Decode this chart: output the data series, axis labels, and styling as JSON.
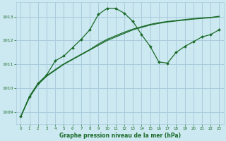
{
  "xlabel": "Graphe pression niveau de la mer (hPa)",
  "background_color": "#cce8f0",
  "grid_color": "#aaccdd",
  "line_color": "#1a6b2a",
  "xlim": [
    -0.5,
    23.5
  ],
  "ylim": [
    1008.5,
    1013.6
  ],
  "yticks": [
    1009,
    1010,
    1011,
    1012,
    1013
  ],
  "xticks": [
    0,
    1,
    2,
    3,
    4,
    5,
    6,
    7,
    8,
    9,
    10,
    11,
    12,
    13,
    14,
    15,
    16,
    17,
    18,
    19,
    20,
    21,
    22,
    23
  ],
  "series1_x": [
    0,
    1,
    2,
    3,
    4,
    5,
    6,
    7,
    8,
    9,
    10,
    11,
    12,
    13,
    14,
    15,
    16,
    17,
    18,
    19,
    20,
    21,
    22,
    23
  ],
  "series1_y": [
    1008.8,
    1009.6,
    1010.15,
    1010.5,
    1010.75,
    1011.0,
    1011.2,
    1011.4,
    1011.6,
    1011.8,
    1012.0,
    1012.15,
    1012.3,
    1012.45,
    1012.55,
    1012.65,
    1012.72,
    1012.78,
    1012.82,
    1012.86,
    1012.9,
    1012.93,
    1012.96,
    1013.0
  ],
  "series2_x": [
    0,
    1,
    2,
    3,
    4,
    5,
    6,
    7,
    8,
    9,
    10,
    11,
    12,
    13,
    14,
    15,
    16,
    17,
    18,
    19,
    20,
    21,
    22,
    23
  ],
  "series2_y": [
    1008.8,
    1009.65,
    1010.2,
    1010.55,
    1011.15,
    1011.35,
    1011.7,
    1012.05,
    1012.45,
    1013.1,
    1013.35,
    1013.35,
    1013.15,
    1012.8,
    1012.25,
    1011.75,
    1011.1,
    1011.05,
    1011.5,
    1011.75,
    1011.95,
    1012.15,
    1012.25,
    1012.45
  ],
  "series3_x": [
    0,
    1,
    2,
    3,
    4,
    5,
    6,
    7,
    8,
    9,
    10,
    11,
    12,
    13,
    14,
    15,
    16,
    17,
    18,
    19,
    20,
    21,
    22,
    23
  ],
  "series3_y": [
    1008.8,
    1009.62,
    1010.18,
    1010.52,
    1010.78,
    1011.02,
    1011.22,
    1011.42,
    1011.62,
    1011.85,
    1012.05,
    1012.2,
    1012.35,
    1012.48,
    1012.58,
    1012.68,
    1012.75,
    1012.8,
    1012.84,
    1012.88,
    1012.92,
    1012.95,
    1012.97,
    1013.02
  ]
}
